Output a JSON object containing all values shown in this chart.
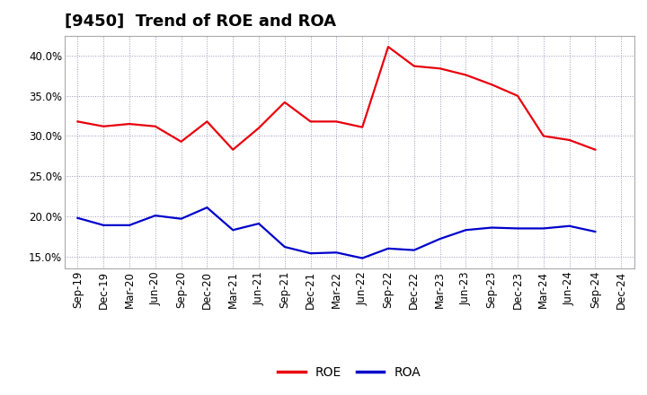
{
  "title": "[9450]  Trend of ROE and ROA",
  "labels": [
    "Sep-19",
    "Dec-19",
    "Mar-20",
    "Jun-20",
    "Sep-20",
    "Dec-20",
    "Mar-21",
    "Jun-21",
    "Sep-21",
    "Dec-21",
    "Mar-22",
    "Jun-22",
    "Sep-22",
    "Dec-22",
    "Mar-23",
    "Jun-23",
    "Sep-23",
    "Dec-23",
    "Mar-24",
    "Jun-24",
    "Sep-24",
    "Dec-24"
  ],
  "ROE": [
    31.8,
    31.2,
    31.5,
    31.2,
    29.3,
    31.8,
    28.3,
    31.0,
    34.2,
    31.8,
    31.8,
    31.1,
    41.1,
    38.7,
    38.4,
    37.6,
    36.4,
    35.0,
    30.0,
    29.5,
    28.3,
    null
  ],
  "ROA": [
    19.8,
    18.9,
    18.9,
    20.1,
    19.7,
    21.1,
    18.3,
    19.1,
    16.2,
    15.4,
    15.5,
    14.8,
    16.0,
    15.8,
    17.2,
    18.3,
    18.6,
    18.5,
    18.5,
    18.8,
    18.1,
    null
  ],
  "roe_color": "#e8000d",
  "roa_color": "#0000cc",
  "background_color": "#ffffff",
  "grid_color": "#9999bb",
  "ylim": [
    13.5,
    42.5
  ],
  "yticks": [
    15.0,
    20.0,
    25.0,
    30.0,
    35.0,
    40.0
  ],
  "title_fontsize": 13,
  "legend_fontsize": 10,
  "tick_fontsize": 8.5
}
